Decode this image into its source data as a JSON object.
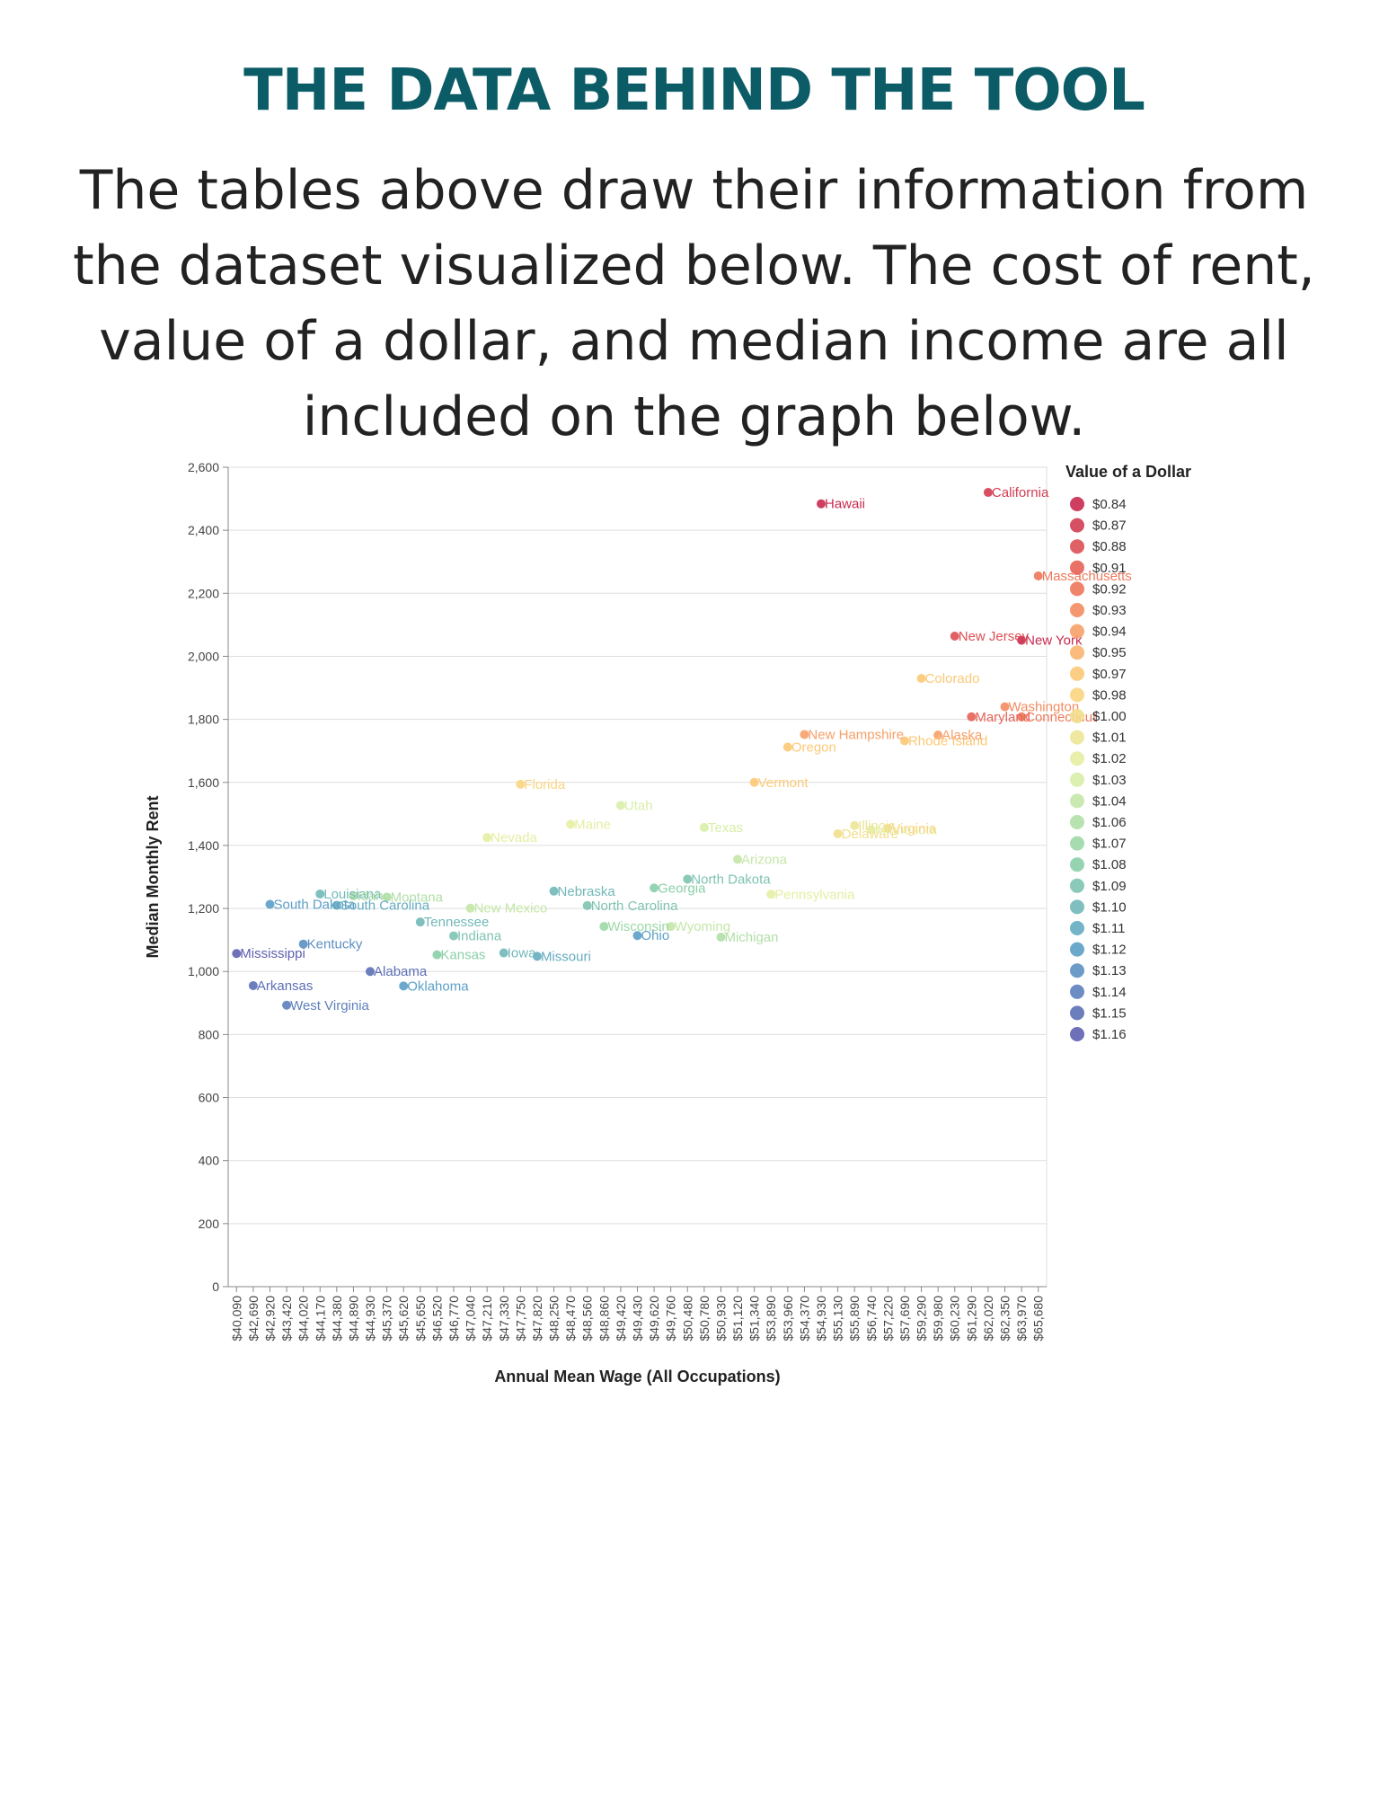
{
  "page": {
    "title": "THE DATA BEHIND THE TOOL",
    "intro": "The tables above draw their information from the dataset visualized below. The cost of rent, value of a dollar, and median income are all included on the graph below."
  },
  "chart_data": {
    "type": "scatter",
    "xlabel": "Annual Mean Wage (All Occupations)",
    "ylabel": "Median Monthly Rent",
    "legend_title": "Value of a Dollar",
    "legend_position": "right",
    "grid": true,
    "x_scale": "ordinal",
    "x_tick_labels": [
      "$40,090",
      "$42,690",
      "$42,920",
      "$43,420",
      "$44,020",
      "$44,170",
      "$44,380",
      "$44,890",
      "$44,930",
      "$45,370",
      "$45,620",
      "$45,650",
      "$46,520",
      "$46,770",
      "$47,040",
      "$47,210",
      "$47,330",
      "$47,750",
      "$47,820",
      "$48,250",
      "$48,470",
      "$48,560",
      "$48,860",
      "$49,420",
      "$49,430",
      "$49,620",
      "$49,760",
      "$50,480",
      "$50,780",
      "$50,930",
      "$51,120",
      "$51,340",
      "$53,890",
      "$53,960",
      "$54,370",
      "$54,930",
      "$55,130",
      "$55,890",
      "$56,740",
      "$57,220",
      "$57,690",
      "$59,290",
      "$59,980",
      "$60,230",
      "$61,290",
      "$62,020",
      "$62,350",
      "$63,970",
      "$65,680"
    ],
    "y_ticks": [
      "0",
      "200",
      "400",
      "600",
      "800",
      "1,000",
      "1,200",
      "1,400",
      "1,600",
      "1,800",
      "2,000",
      "2,200",
      "2,400",
      "2,600"
    ],
    "ylim": [
      0,
      2600
    ],
    "legend_values": [
      "$0.84",
      "$0.87",
      "$0.88",
      "$0.91",
      "$0.92",
      "$0.93",
      "$0.94",
      "$0.95",
      "$0.97",
      "$0.98",
      "$1.00",
      "$1.01",
      "$1.02",
      "$1.03",
      "$1.04",
      "$1.06",
      "$1.07",
      "$1.08",
      "$1.09",
      "$1.10",
      "$1.11",
      "$1.12",
      "$1.13",
      "$1.14",
      "$1.15",
      "$1.16"
    ],
    "colors": {
      "low_value": "#c9294f",
      "mid_low": "#f07a5a",
      "mid": "#fdd07a",
      "mid_high": "#e2f2a8",
      "high_mid": "#8fd3a6",
      "high": "#5ba2c8",
      "high_value": "#5e60b0"
    },
    "points": [
      {
        "state": "Mississippi",
        "wage": "$40,090",
        "rent": 1057,
        "dollar": "$1.16"
      },
      {
        "state": "Arkansas",
        "wage": "$42,690",
        "rent": 955,
        "dollar": "$1.15"
      },
      {
        "state": "South Dakota",
        "wage": "$42,920",
        "rent": 1213,
        "dollar": "$1.12"
      },
      {
        "state": "West Virginia",
        "wage": "$43,420",
        "rent": 893,
        "dollar": "$1.14"
      },
      {
        "state": "Kentucky",
        "wage": "$44,020",
        "rent": 1087,
        "dollar": "$1.13"
      },
      {
        "state": "Louisiana",
        "wage": "$44,170",
        "rent": 1246,
        "dollar": "$1.10"
      },
      {
        "state": "South Carolina",
        "wage": "$44,380",
        "rent": 1210,
        "dollar": "$1.11"
      },
      {
        "state": "Idaho",
        "wage": "$44,890",
        "rent": 1240,
        "dollar": "$1.06"
      },
      {
        "state": "Alabama",
        "wage": "$44,930",
        "rent": 1000,
        "dollar": "$1.15"
      },
      {
        "state": "Montana",
        "wage": "$45,370",
        "rent": 1236,
        "dollar": "$1.06"
      },
      {
        "state": "Oklahoma",
        "wage": "$45,620",
        "rent": 954,
        "dollar": "$1.12"
      },
      {
        "state": "Tennessee",
        "wage": "$45,650",
        "rent": 1157,
        "dollar": "$1.10"
      },
      {
        "state": "Kansas",
        "wage": "$46,520",
        "rent": 1053,
        "dollar": "$1.08"
      },
      {
        "state": "Indiana",
        "wage": "$46,770",
        "rent": 1113,
        "dollar": "$1.09"
      },
      {
        "state": "New Mexico",
        "wage": "$47,040",
        "rent": 1201,
        "dollar": "$1.04"
      },
      {
        "state": "Nevada",
        "wage": "$47,210",
        "rent": 1425,
        "dollar": "$1.02"
      },
      {
        "state": "Iowa",
        "wage": "$47,330",
        "rent": 1059,
        "dollar": "$1.10"
      },
      {
        "state": "Florida",
        "wage": "$47,750",
        "rent": 1594,
        "dollar": "$0.98"
      },
      {
        "state": "Missouri",
        "wage": "$47,820",
        "rent": 1048,
        "dollar": "$1.11"
      },
      {
        "state": "Nebraska",
        "wage": "$48,250",
        "rent": 1255,
        "dollar": "$1.10"
      },
      {
        "state": "Maine",
        "wage": "$48,470",
        "rent": 1467,
        "dollar": "$1.02"
      },
      {
        "state": "North Carolina",
        "wage": "$48,560",
        "rent": 1209,
        "dollar": "$1.09"
      },
      {
        "state": "Wisconsin",
        "wage": "$48,860",
        "rent": 1143,
        "dollar": "$1.07"
      },
      {
        "state": "Utah",
        "wage": "$49,420",
        "rent": 1527,
        "dollar": "$1.03"
      },
      {
        "state": "Ohio",
        "wage": "$49,430",
        "rent": 1114,
        "dollar": "$1.12"
      },
      {
        "state": "Georgia",
        "wage": "$49,620",
        "rent": 1265,
        "dollar": "$1.08"
      },
      {
        "state": "Wyoming",
        "wage": "$49,760",
        "rent": 1143,
        "dollar": "$1.04"
      },
      {
        "state": "North Dakota",
        "wage": "$50,480",
        "rent": 1293,
        "dollar": "$1.09"
      },
      {
        "state": "Texas",
        "wage": "$50,780",
        "rent": 1457,
        "dollar": "$1.03"
      },
      {
        "state": "Michigan",
        "wage": "$50,930",
        "rent": 1109,
        "dollar": "$1.06"
      },
      {
        "state": "Arizona",
        "wage": "$51,120",
        "rent": 1356,
        "dollar": "$1.04"
      },
      {
        "state": "Vermont",
        "wage": "$51,340",
        "rent": 1600,
        "dollar": "$0.97"
      },
      {
        "state": "Pennsylvania",
        "wage": "$53,890",
        "rent": 1245,
        "dollar": "$1.02"
      },
      {
        "state": "Oregon",
        "wage": "$53,960",
        "rent": 1712,
        "dollar": "$0.97"
      },
      {
        "state": "New Hampshire",
        "wage": "$54,370",
        "rent": 1752,
        "dollar": "$0.94"
      },
      {
        "state": "Hawaii",
        "wage": "$54,930",
        "rent": 2484,
        "dollar": "$0.84"
      },
      {
        "state": "Delaware",
        "wage": "$55,130",
        "rent": 1437,
        "dollar": "$1.00"
      },
      {
        "state": "Illinois",
        "wage": "$55,890",
        "rent": 1463,
        "dollar": "$1.01"
      },
      {
        "state": "Minnesota",
        "wage": "$56,740",
        "rent": 1450,
        "dollar": "$1.02"
      },
      {
        "state": "Virginia",
        "wage": "$57,220",
        "rent": 1454,
        "dollar": "$0.98"
      },
      {
        "state": "Rhode Island",
        "wage": "$57,690",
        "rent": 1732,
        "dollar": "$0.97"
      },
      {
        "state": "Colorado",
        "wage": "$59,290",
        "rent": 1930,
        "dollar": "$0.97"
      },
      {
        "state": "Alaska",
        "wage": "$59,980",
        "rent": 1750,
        "dollar": "$0.94"
      },
      {
        "state": "New Jersey",
        "wage": "$60,230",
        "rent": 2064,
        "dollar": "$0.88"
      },
      {
        "state": "Maryland",
        "wage": "$61,290",
        "rent": 1808,
        "dollar": "$0.91"
      },
      {
        "state": "California",
        "wage": "$62,020",
        "rent": 2520,
        "dollar": "$0.87"
      },
      {
        "state": "Washington",
        "wage": "$62,350",
        "rent": 1840,
        "dollar": "$0.93"
      },
      {
        "state": "Connecticut",
        "wage": "$63,970",
        "rent": 1808,
        "dollar": "$0.92"
      },
      {
        "state": "New York",
        "wage": "$63,970",
        "rent": 2051,
        "dollar": "$0.84"
      },
      {
        "state": "Massachusetts",
        "wage": "$65,680",
        "rent": 2255,
        "dollar": "$0.92"
      }
    ]
  }
}
